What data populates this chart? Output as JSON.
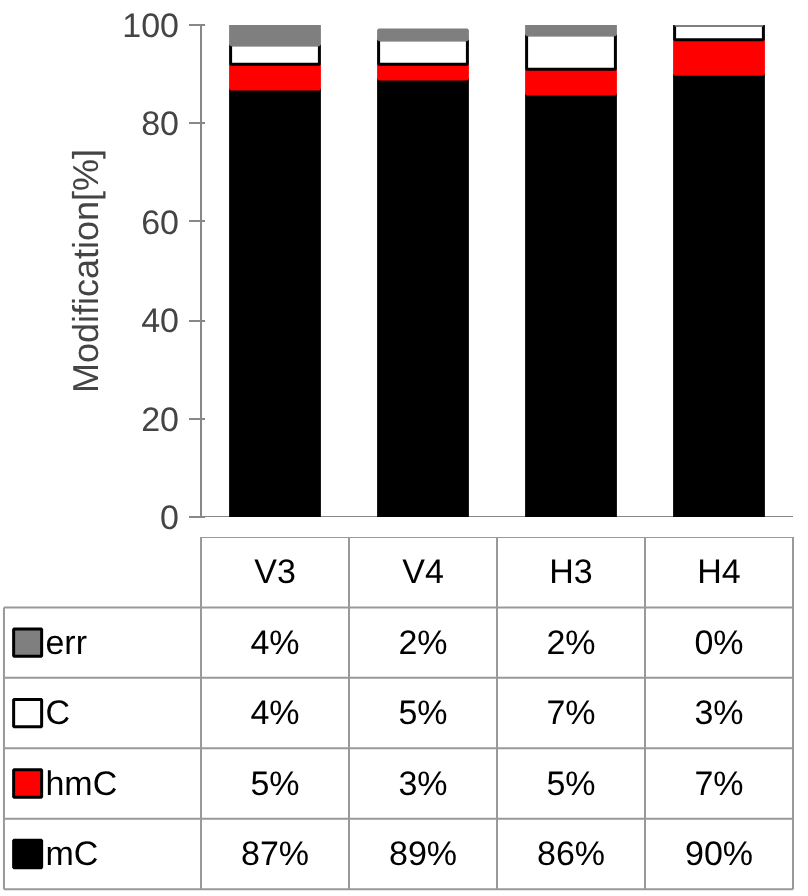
{
  "chart_data": {
    "type": "bar",
    "stacked": true,
    "ylabel": "Modification[%]",
    "categories": [
      "V3",
      "V4",
      "H3",
      "H4"
    ],
    "series": [
      {
        "name": "mC",
        "color": "#000000",
        "values": [
          87,
          89,
          86,
          90
        ],
        "value_labels": [
          "87%",
          "89%",
          "86%",
          "90%"
        ]
      },
      {
        "name": "hmC",
        "color": "#ff0000",
        "values": [
          5,
          3,
          5,
          7
        ],
        "value_labels": [
          "5%",
          "3%",
          "5%",
          "7%"
        ]
      },
      {
        "name": "C",
        "color": "#ffffff",
        "values": [
          4,
          5,
          7,
          3
        ],
        "value_labels": [
          "4%",
          "5%",
          "7%",
          "3%"
        ]
      },
      {
        "name": "err",
        "color": "#7f7f7f",
        "values": [
          4,
          2,
          2,
          0
        ],
        "value_labels": [
          "4%",
          "2%",
          "2%",
          "0%"
        ]
      }
    ],
    "ylim": [
      0,
      100
    ],
    "yticks": [
      0,
      20,
      40,
      60,
      80,
      100
    ],
    "grid": false,
    "legend": "bottom left"
  }
}
